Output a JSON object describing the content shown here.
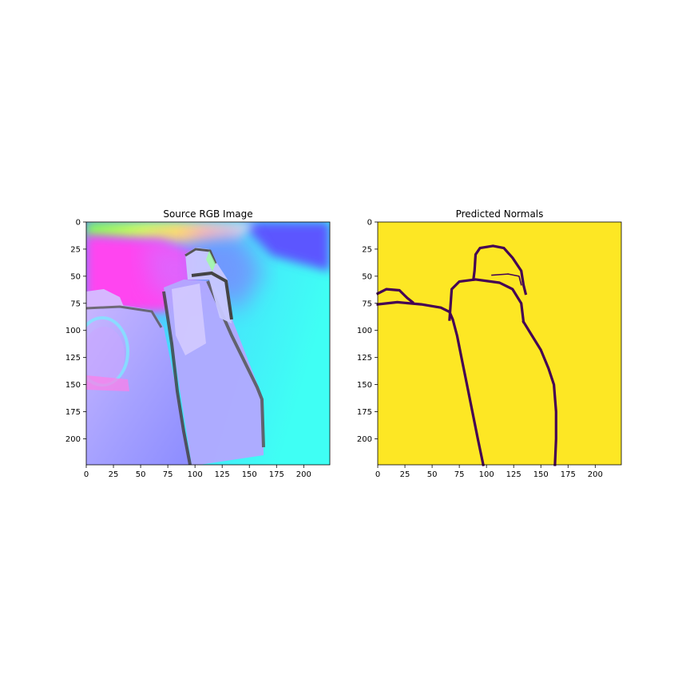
{
  "chart_data": [
    {
      "type": "heatmap",
      "title": "Source RGB Image",
      "image_size": [
        224,
        224
      ],
      "x_ticks": [
        0,
        25,
        50,
        75,
        100,
        125,
        150,
        175,
        200
      ],
      "y_ticks": [
        0,
        25,
        50,
        75,
        100,
        125,
        150,
        175,
        200
      ],
      "xlim": [
        0,
        224
      ],
      "ylim": [
        224,
        0
      ],
      "colors": {
        "magenta": "#ff44f0",
        "cyan": "#3ffff4",
        "blue": "#5a5cff",
        "lavender": "#a9a6ff",
        "green": "#55ff55",
        "yellow": "#ffd85a"
      }
    },
    {
      "type": "heatmap",
      "title": "Predicted Normals",
      "image_size": [
        224,
        224
      ],
      "x_ticks": [
        0,
        25,
        50,
        75,
        100,
        125,
        150,
        175,
        200
      ],
      "y_ticks": [
        0,
        25,
        50,
        75,
        100,
        125,
        150,
        175,
        200
      ],
      "xlim": [
        0,
        224
      ],
      "ylim": [
        224,
        0
      ],
      "colors": {
        "background": "#fde724",
        "edge": "#440154"
      },
      "edges": [
        [
          [
            0,
            76
          ],
          [
            18,
            74
          ],
          [
            40,
            76
          ],
          [
            58,
            79
          ],
          [
            66,
            83
          ],
          [
            69,
            90
          ],
          [
            73,
            105
          ],
          [
            77,
            125
          ],
          [
            82,
            150
          ],
          [
            87,
            175
          ],
          [
            92,
            200
          ],
          [
            97,
            224
          ]
        ],
        [
          [
            0,
            66
          ],
          [
            8,
            62
          ],
          [
            20,
            63
          ],
          [
            27,
            70
          ],
          [
            32,
            74
          ]
        ],
        [
          [
            66,
            90
          ],
          [
            68,
            62
          ],
          [
            75,
            55
          ],
          [
            90,
            53
          ],
          [
            112,
            56
          ],
          [
            124,
            62
          ],
          [
            132,
            75
          ],
          [
            134,
            92
          ]
        ],
        [
          [
            88,
            53
          ],
          [
            89,
            45
          ],
          [
            90,
            30
          ],
          [
            94,
            24
          ],
          [
            106,
            22
          ],
          [
            116,
            24
          ],
          [
            124,
            33
          ],
          [
            132,
            45
          ],
          [
            134,
            58
          ],
          [
            136,
            66
          ]
        ],
        [
          [
            134,
            92
          ],
          [
            142,
            105
          ],
          [
            150,
            118
          ],
          [
            157,
            135
          ],
          [
            162,
            150
          ],
          [
            164,
            175
          ],
          [
            164,
            200
          ],
          [
            163,
            224
          ]
        ],
        [
          [
            105,
            49
          ],
          [
            120,
            48
          ],
          [
            130,
            50
          ],
          [
            132,
            58
          ]
        ]
      ]
    }
  ]
}
